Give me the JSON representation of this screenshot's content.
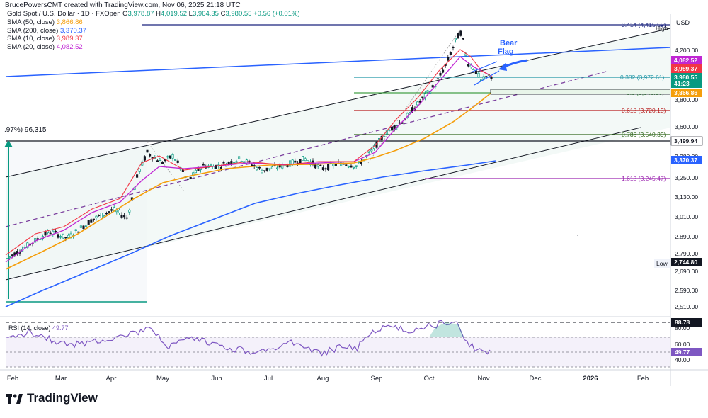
{
  "header": {
    "attribution": "BrucePowersCMT created with TradingView.com, Nov 06, 2025 21:18 UTC",
    "symbol": "Gold Spot / U.S. Dollar · 1D · FXOpen",
    "ohlc": {
      "o_label": "O",
      "o": "3,978.87",
      "h_label": "H",
      "h": "4,019.52",
      "l_label": "L",
      "l": "3,964.35",
      "c_label": "C",
      "c": "3,980.55",
      "change": "+0.56 (+0.01%)"
    }
  },
  "legend": [
    {
      "label": "SMA (50, close)",
      "value": "3,866.86",
      "color": "#f59e0b"
    },
    {
      "label": "SMA (200, close)",
      "value": "3,370.37",
      "color": "#2962ff"
    },
    {
      "label": "SMA (10, close)",
      "value": "3,989.37",
      "color": "#f23645"
    },
    {
      "label": "SMA (20, close)",
      "value": "4,082.52",
      "color": "#c026d3"
    }
  ],
  "annotations": {
    "bear_flag": "Bear\nFlag",
    "range_label": ".97%) 96,315",
    "high_label": "High",
    "low_label": "Low"
  },
  "fib_levels": [
    {
      "label": "3.414 (4,415.59)",
      "value": 4415.59,
      "color": "#1a237e"
    },
    {
      "label": "0.382 (3,972.61)",
      "value": 3972.61,
      "color": "#2196a6"
    },
    {
      "label": "0.5 (3,846.37)",
      "value": 3846.37,
      "color": "#43a047"
    },
    {
      "label": "0.618 (3,720.13)",
      "value": 3720.13,
      "color": "#b71c1c"
    },
    {
      "label": "0.786 (3,540.39)",
      "value": 3540.39,
      "color": "#33691e"
    },
    {
      "label": "1.618 (3,245.47)",
      "value": 3245.47,
      "color": "#9c27b0"
    }
  ],
  "price_axis": {
    "currency": "USD",
    "ticks": [
      "4,200.00",
      "4,000.00",
      "3,800.00",
      "3,600.00",
      "3,380.00",
      "3,250.00",
      "3,130.00",
      "3,010.00",
      "2,890.00",
      "2,790.00",
      "2,690.00",
      "2,590.00",
      "2,510.00"
    ],
    "tags": [
      {
        "text": "4,082.52",
        "color": "#c026d3"
      },
      {
        "text": "3,989.37",
        "color": "#f23645"
      },
      {
        "text": "3,980.55",
        "color": "#089981"
      },
      {
        "text": "41:23",
        "color": "#089981"
      },
      {
        "text": "3,866.86",
        "color": "#f59e0b"
      },
      {
        "text": "3,499.94",
        "color": "#131722"
      },
      {
        "text": "3,370.37",
        "color": "#2962ff"
      },
      {
        "text": "2,744.80",
        "color": "#ffffff"
      }
    ]
  },
  "rsi": {
    "label": "RSI (14, close)",
    "value": "49.77",
    "level_tags": [
      "88.78",
      "80.00",
      "60.00",
      "49.77",
      "40.00"
    ]
  },
  "time_axis": [
    "Feb",
    "Mar",
    "Apr",
    "May",
    "Jun",
    "Jul",
    "Aug",
    "Sep",
    "Oct",
    "Nov",
    "Dec",
    "2026",
    "Feb"
  ],
  "brand": "TradingView",
  "chart_data": {
    "type": "line",
    "title": "Gold Spot / U.S. Dollar · 1D · FXOpen",
    "x": [
      "Feb",
      "Mar",
      "Apr",
      "May",
      "Jun",
      "Jul",
      "Aug",
      "Sep",
      "Oct",
      "Nov"
    ],
    "series": [
      {
        "name": "Gold close (approx.)",
        "values": [
          2780,
          2900,
          3110,
          3250,
          3350,
          3340,
          3350,
          3480,
          3950,
          3980
        ]
      },
      {
        "name": "SMA (50, close)",
        "values": [
          2660,
          2780,
          2920,
          3080,
          3210,
          3300,
          3330,
          3400,
          3700,
          3866.86
        ]
      },
      {
        "name": "SMA (200, close)",
        "values": [
          2540,
          2590,
          2650,
          2720,
          2790,
          2850,
          2930,
          3010,
          3200,
          3370.37
        ]
      },
      {
        "name": "SMA (10, close)",
        "values": [
          2790,
          2910,
          3100,
          3290,
          3320,
          3350,
          3340,
          3540,
          4150,
          3989.37
        ]
      },
      {
        "name": "SMA (20, close)",
        "values": [
          2770,
          2890,
          3060,
          3270,
          3330,
          3340,
          3350,
          3500,
          4050,
          4082.52
        ]
      }
    ],
    "rsi_values": [
      62,
      58,
      55,
      70,
      48,
      52,
      45,
      70,
      85,
      49.77
    ],
    "ylim": [
      2450,
      4470
    ],
    "log_scale": true,
    "grid": false
  }
}
